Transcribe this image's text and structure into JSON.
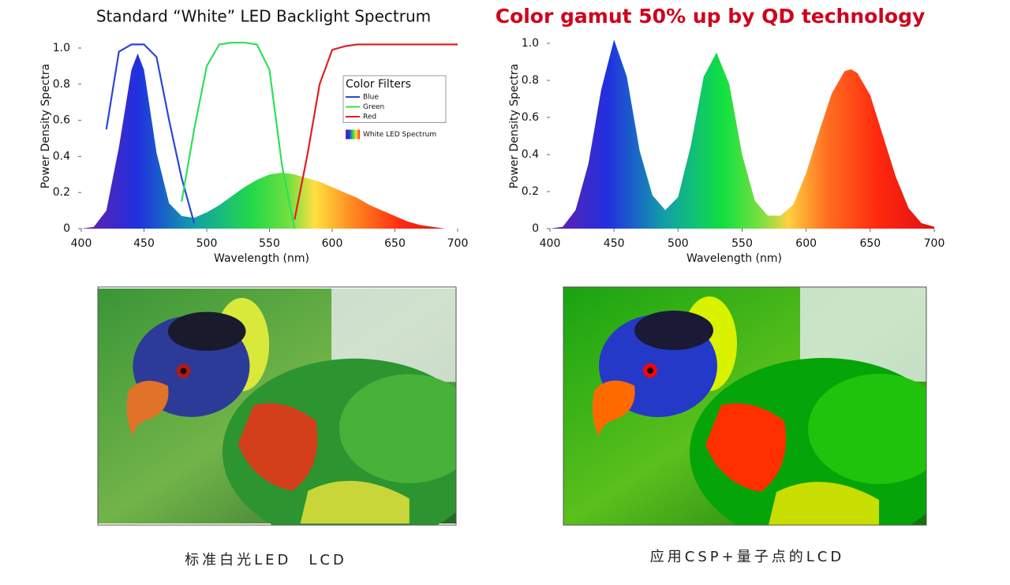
{
  "chart_data": [
    {
      "type": "line",
      "title": "Standard “White” LED Backlight Spectrum",
      "xlabel": "Wavelength (nm)",
      "ylabel": "Power Density Spectra",
      "legend_title": "Color Filters",
      "legend": "upper right",
      "x": [
        400,
        410,
        420,
        430,
        440,
        445,
        450,
        460,
        470,
        480,
        490,
        500,
        510,
        520,
        530,
        540,
        550,
        560,
        570,
        580,
        590,
        600,
        610,
        620,
        630,
        640,
        650,
        660,
        670,
        680,
        690,
        700
      ],
      "series": [
        {
          "name": "Blue",
          "color": "#2a47d6",
          "values": [
            null,
            null,
            0.55,
            0.98,
            1.02,
            1.02,
            1.02,
            0.95,
            0.6,
            0.28,
            0.03,
            null,
            null,
            null,
            null,
            null,
            null,
            null,
            null,
            null,
            null,
            null,
            null,
            null,
            null,
            null,
            null,
            null,
            null,
            null,
            null,
            null
          ]
        },
        {
          "name": "Green",
          "color": "#2ee05a",
          "values": [
            null,
            null,
            null,
            null,
            null,
            null,
            null,
            null,
            null,
            0.15,
            0.55,
            0.9,
            1.02,
            1.03,
            1.03,
            1.02,
            0.88,
            0.35,
            0.0,
            null,
            null,
            null,
            null,
            null,
            null,
            null,
            null,
            null,
            null,
            null,
            null,
            null
          ]
        },
        {
          "name": "Red",
          "color": "#e02020",
          "values": [
            null,
            null,
            null,
            null,
            null,
            null,
            null,
            null,
            null,
            null,
            null,
            null,
            null,
            null,
            null,
            null,
            null,
            null,
            0.05,
            0.4,
            0.8,
            0.99,
            1.01,
            1.02,
            1.02,
            1.02,
            1.02,
            1.02,
            1.02,
            1.02,
            1.02,
            1.02
          ]
        },
        {
          "name": "White LED Spectrum",
          "area": true,
          "values": [
            0,
            0.01,
            0.1,
            0.45,
            0.88,
            0.97,
            0.88,
            0.42,
            0.14,
            0.07,
            0.06,
            0.09,
            0.13,
            0.18,
            0.23,
            0.27,
            0.3,
            0.31,
            0.3,
            0.28,
            0.26,
            0.23,
            0.2,
            0.17,
            0.13,
            0.1,
            0.07,
            0.04,
            0.02,
            0.01,
            0,
            0
          ]
        }
      ],
      "xlim": [
        400,
        700
      ],
      "xticks": [
        400,
        450,
        500,
        550,
        600,
        650,
        700
      ],
      "ylim": [
        0,
        1.05
      ],
      "yticks": [
        0,
        0.2,
        0.4,
        0.6,
        0.8,
        {
          "value": 1,
          "label": "1.0"
        }
      ]
    },
    {
      "type": "line",
      "title": "Color gamut 50% up by QD technology",
      "title_color": "#d0021b",
      "xlabel": "Wavelength (nm)",
      "ylabel": "Power Density Spectra",
      "x": [
        400,
        410,
        420,
        430,
        440,
        450,
        460,
        470,
        480,
        490,
        500,
        510,
        520,
        530,
        540,
        550,
        560,
        570,
        580,
        590,
        600,
        610,
        620,
        630,
        635,
        640,
        650,
        660,
        670,
        680,
        690,
        700
      ],
      "series": [
        {
          "area": true,
          "values": [
            0,
            0.01,
            0.1,
            0.35,
            0.75,
            1.02,
            0.82,
            0.42,
            0.18,
            0.1,
            0.17,
            0.45,
            0.82,
            0.95,
            0.78,
            0.4,
            0.15,
            0.07,
            0.07,
            0.13,
            0.3,
            0.52,
            0.73,
            0.85,
            0.86,
            0.84,
            0.72,
            0.5,
            0.28,
            0.11,
            0.03,
            0.01
          ]
        }
      ],
      "xlim": [
        400,
        700
      ],
      "xticks": [
        400,
        450,
        500,
        550,
        600,
        650,
        700
      ],
      "ylim": [
        0,
        1.05
      ],
      "yticks": [
        0,
        0.2,
        0.4,
        0.6,
        0.8,
        {
          "value": 1,
          "label": "1.0"
        }
      ]
    }
  ],
  "captions": [
    "标准白光LED　LCD",
    "应用CSP+量子点的LCD"
  ]
}
